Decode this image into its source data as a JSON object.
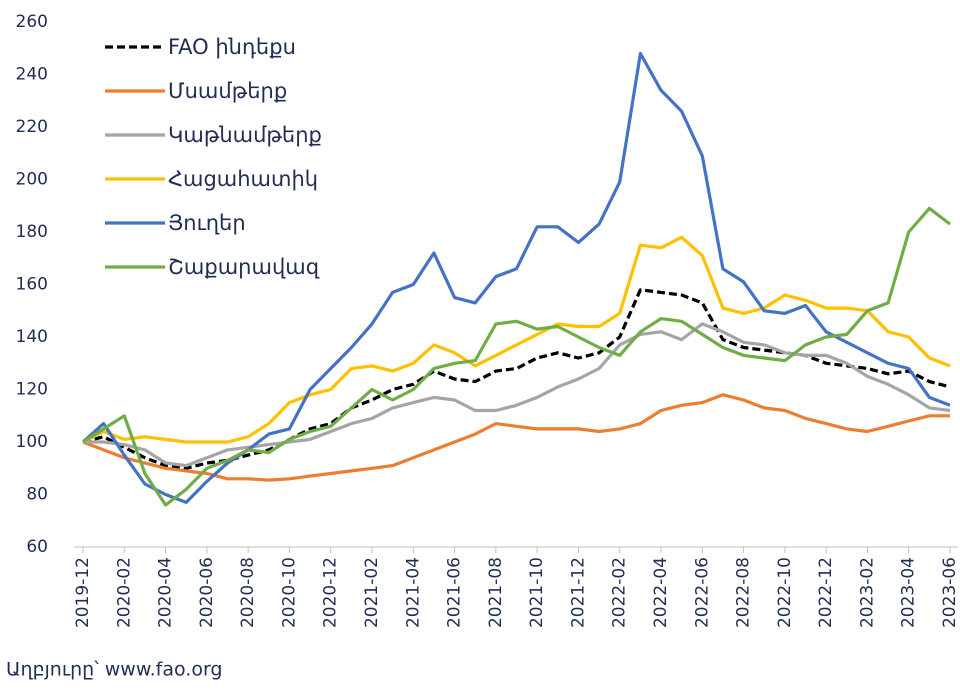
{
  "chart_data": {
    "type": "line",
    "categories": [
      "2019-12",
      null,
      "2020-02",
      null,
      "2020-04",
      null,
      "2020-06",
      null,
      "2020-08",
      null,
      "2020-10",
      null,
      "2020-12",
      null,
      "2021-02",
      null,
      "2021-04",
      null,
      "2021-06",
      null,
      "2021-08",
      null,
      "2021-10",
      null,
      "2021-12",
      null,
      "2022-02",
      null,
      "2022-04",
      null,
      "2022-06",
      null,
      "2022-08",
      null,
      "2022-10",
      null,
      "2022-12",
      null,
      "2023-02",
      null,
      "2023-04",
      null,
      "2023-06"
    ],
    "series": [
      {
        "name": "FAO ինդեքս",
        "color": "#000000",
        "dash": true,
        "values": [
          100,
          102,
          98,
          94,
          91,
          90,
          92,
          93,
          95,
          97,
          101,
          105,
          107,
          113,
          116,
          120,
          122,
          127,
          124,
          123,
          127,
          128,
          132,
          134,
          132,
          134,
          140,
          158,
          157,
          156,
          153,
          139,
          136,
          135,
          134,
          133,
          130,
          129,
          128,
          126,
          127,
          123,
          121
        ]
      },
      {
        "name": "Մսամթերք",
        "color": "#ed7d31",
        "values": [
          100,
          97,
          94,
          92,
          90,
          89,
          88,
          86,
          86,
          85.5,
          86,
          87,
          88,
          89,
          90,
          91,
          94,
          97,
          100,
          103,
          107,
          106,
          105,
          105,
          105,
          104,
          105,
          107,
          112,
          114,
          115,
          118,
          116,
          113,
          112,
          109,
          107,
          105,
          104,
          106,
          108,
          110,
          110
        ]
      },
      {
        "name": "Կաթնամթերք",
        "color": "#a5a5a5",
        "values": [
          100,
          100,
          99,
          97,
          92,
          91,
          94,
          97,
          98,
          99,
          100,
          101,
          104,
          107,
          109,
          113,
          115,
          117,
          116,
          112,
          112,
          114,
          117,
          121,
          124,
          128,
          137,
          141,
          142,
          139,
          145,
          142,
          138,
          137,
          134,
          133,
          133,
          130,
          125,
          122,
          118,
          113,
          112
        ]
      },
      {
        "name": "Հացահատիկ",
        "color": "#ffc000",
        "values": [
          100,
          104,
          101,
          102,
          101,
          100,
          100,
          100,
          102,
          107,
          115,
          118,
          120,
          128,
          129,
          127,
          130,
          137,
          134,
          129,
          133,
          137,
          141,
          145,
          144,
          144,
          149,
          175,
          174,
          178,
          171,
          151,
          149,
          151,
          156,
          154,
          151,
          151,
          150,
          142,
          140,
          132,
          129
        ]
      },
      {
        "name": "Յուղեր",
        "color": "#4472c4",
        "values": [
          100,
          107,
          95,
          84,
          80,
          77,
          85,
          92,
          97,
          103,
          105,
          120,
          128,
          136,
          145,
          157,
          160,
          172,
          155,
          153,
          163,
          166,
          182,
          182,
          176,
          183,
          199,
          248,
          234,
          226,
          209,
          166,
          161,
          150,
          149,
          152,
          142,
          138,
          134,
          130,
          128,
          117,
          114
        ]
      },
      {
        "name": "Շաքարավազ",
        "color": "#70ad47",
        "values": [
          100,
          105,
          110,
          88,
          76,
          82,
          90,
          93,
          97,
          96,
          101,
          104,
          106,
          113,
          120,
          116,
          120,
          128,
          130,
          131,
          145,
          146,
          143,
          144,
          140,
          136,
          133,
          142,
          147,
          146,
          141,
          136,
          133,
          132,
          131,
          137,
          140,
          141,
          150,
          153,
          180,
          189,
          183
        ]
      }
    ],
    "ylim": [
      60,
      260
    ],
    "yticks": [
      60,
      80,
      100,
      120,
      140,
      160,
      180,
      200,
      220,
      240,
      260
    ],
    "legend": "top-left",
    "source": "Աղբյուրը՝ www.fao.org"
  }
}
